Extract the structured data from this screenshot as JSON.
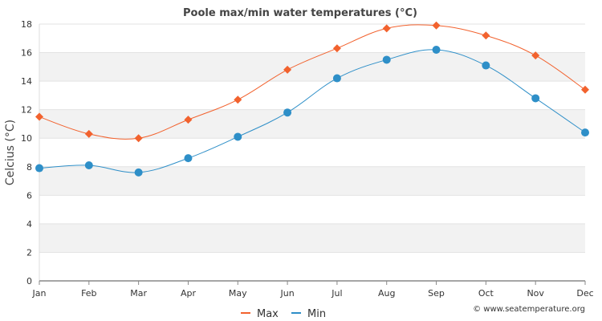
{
  "chart_data": {
    "type": "line",
    "title": "Poole max/min water temperatures (°C)",
    "xlabel": "",
    "ylabel": "Celcius (°C)",
    "categories": [
      "Jan",
      "Feb",
      "Mar",
      "Apr",
      "May",
      "Jun",
      "Jul",
      "Aug",
      "Sep",
      "Oct",
      "Nov",
      "Dec"
    ],
    "ylim": [
      0,
      18
    ],
    "yticks": [
      0,
      2,
      4,
      6,
      8,
      10,
      12,
      14,
      16,
      18
    ],
    "grid": "alternating horizontal bands",
    "legend_position": "bottom-center",
    "series": [
      {
        "name": "Max",
        "color": "#f2622e",
        "marker": "diamond",
        "values": [
          11.5,
          10.3,
          10.0,
          11.3,
          12.7,
          14.8,
          16.3,
          17.7,
          17.9,
          17.2,
          15.8,
          13.4
        ]
      },
      {
        "name": "Min",
        "color": "#2e8fc8",
        "marker": "circle",
        "values": [
          7.9,
          8.1,
          7.6,
          8.6,
          10.1,
          11.8,
          14.2,
          15.5,
          16.2,
          15.1,
          12.8,
          10.4
        ]
      }
    ]
  },
  "credit": "© www.seatemperature.org",
  "colors": {
    "band": "#f2f2f2",
    "axis": "#888888"
  }
}
